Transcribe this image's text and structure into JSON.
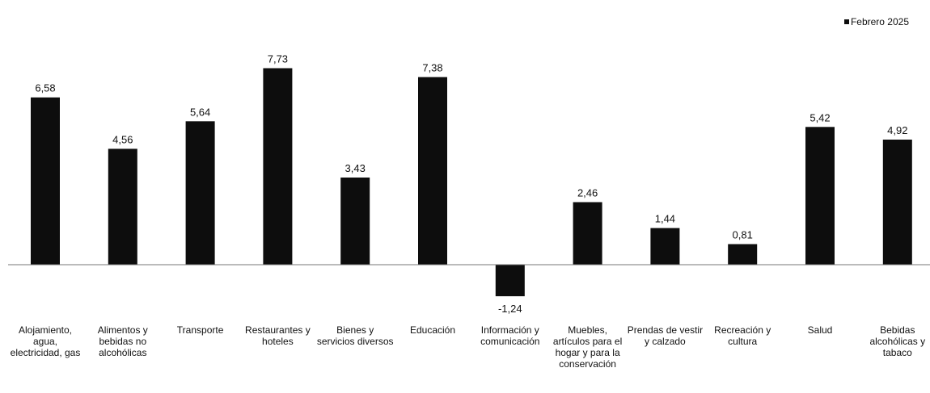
{
  "chart_data": {
    "type": "bar",
    "legend": {
      "label": "Febrero 2025",
      "position": "top-right"
    },
    "color": "#0d0d0d",
    "grid": false,
    "ylim": [
      -2.2,
      8.7
    ],
    "categories": [
      "Alojamiento, agua, electricidad, gas",
      "Alimentos y bebidas no alcohólicas",
      "Transporte",
      "Restaurantes y hoteles",
      "Bienes y servicios diversos",
      "Educación",
      "Información y comunicación",
      "Muebles, artículos para el hogar y para la conservación",
      "Prendas de vestir y calzado",
      "Recreación y cultura",
      "Salud",
      "Bebidas alcohólicas y tabaco"
    ],
    "series": [
      {
        "name": "Febrero 2025",
        "values": [
          6.58,
          4.56,
          5.64,
          7.73,
          3.43,
          7.38,
          -1.24,
          2.46,
          1.44,
          0.81,
          5.42,
          4.92
        ],
        "labels": [
          "6,58",
          "4,56",
          "5,64",
          "7,73",
          "3,43",
          "7,38",
          "-1,24",
          "2,46",
          "1,44",
          "0,81",
          "5,42",
          "4,92"
        ]
      }
    ]
  }
}
